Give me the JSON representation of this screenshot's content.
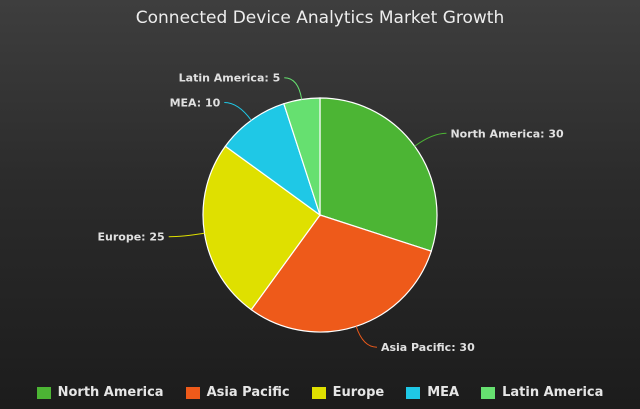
{
  "chart_data": {
    "type": "pie",
    "title": "Connected Device Analytics Market Growth",
    "slices": [
      {
        "name": "North America",
        "label": "North America: 30",
        "value": 30,
        "color": "#4cb534"
      },
      {
        "name": "Asia Pacific",
        "label": "Asia Pacific: 30",
        "value": 30,
        "color": "#ee5a1a"
      },
      {
        "name": "Europe",
        "label": "Europe: 25",
        "value": 25,
        "color": "#dfe000"
      },
      {
        "name": "MEA",
        "label": "MEA: 10",
        "value": 10,
        "color": "#1fc8e6"
      },
      {
        "name": "Latin America",
        "label": "Latin America: 5",
        "value": 5,
        "color": "#66e070"
      }
    ],
    "legend_position": "bottom"
  }
}
